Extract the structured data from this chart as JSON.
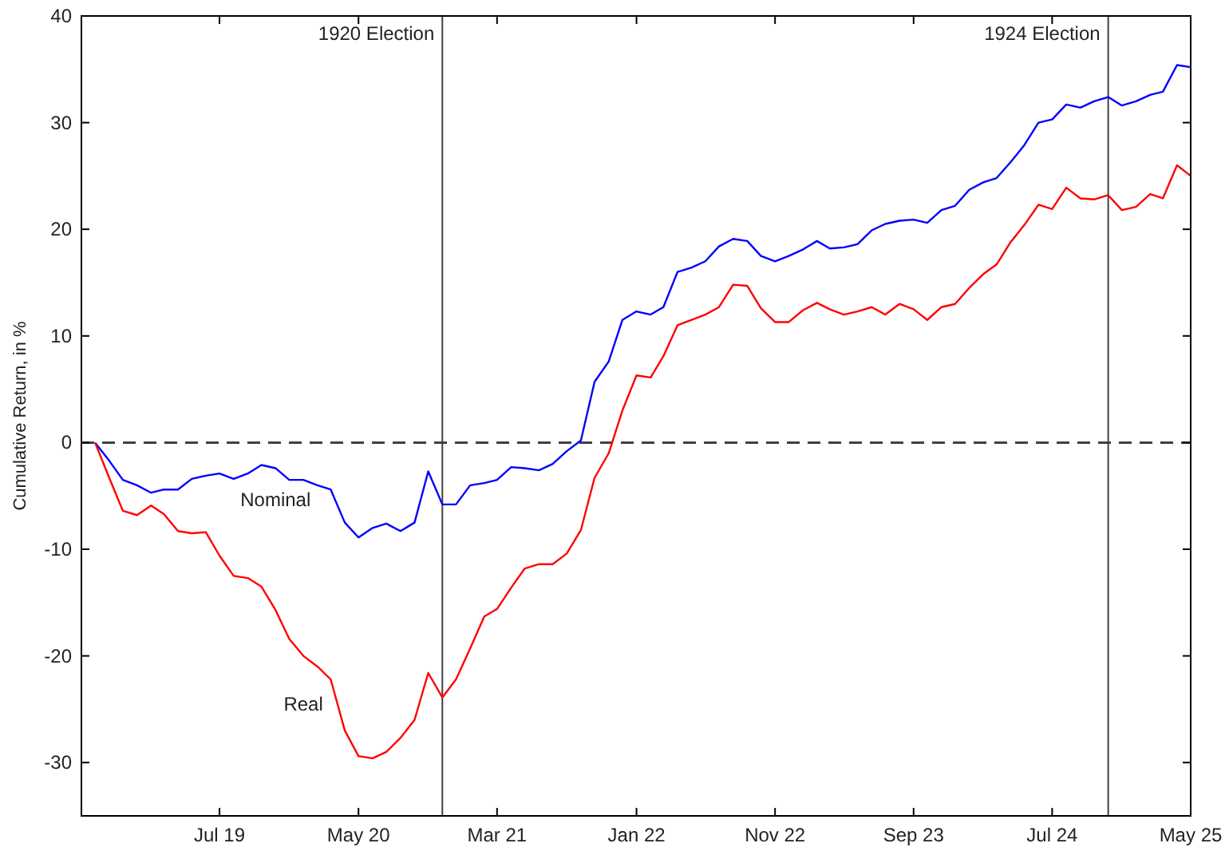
{
  "chart_data": {
    "type": "line",
    "ylabel": "Cumulative Return, in %",
    "x": [
      "1918-10",
      "1918-11",
      "1918-12",
      "1919-01",
      "1919-02",
      "1919-03",
      "1919-04",
      "1919-05",
      "1919-06",
      "1919-07",
      "1919-08",
      "1919-09",
      "1919-10",
      "1919-11",
      "1919-12",
      "1920-01",
      "1920-02",
      "1920-03",
      "1920-04",
      "1920-05",
      "1920-06",
      "1920-07",
      "1920-08",
      "1920-09",
      "1920-10",
      "1920-11",
      "1920-12",
      "1921-01",
      "1921-02",
      "1921-03",
      "1921-04",
      "1921-05",
      "1921-06",
      "1921-07",
      "1921-08",
      "1921-09",
      "1921-10",
      "1921-11",
      "1921-12",
      "1922-01",
      "1922-02",
      "1922-03",
      "1922-04",
      "1922-05",
      "1922-06",
      "1922-07",
      "1922-08",
      "1922-09",
      "1922-10",
      "1922-11",
      "1922-12",
      "1923-01",
      "1923-02",
      "1923-03",
      "1923-04",
      "1923-05",
      "1923-06",
      "1923-07",
      "1923-08",
      "1923-09",
      "1923-10",
      "1923-11",
      "1923-12",
      "1924-01",
      "1924-02",
      "1924-03",
      "1924-04",
      "1924-05",
      "1924-06",
      "1924-07",
      "1924-08",
      "1924-09",
      "1924-10",
      "1924-11",
      "1924-12",
      "1925-01",
      "1925-02",
      "1925-03",
      "1925-04",
      "1925-05"
    ],
    "series": [
      {
        "name": "Nominal",
        "color": "#0000ff",
        "values": [
          0,
          -1.7,
          -3.5,
          -4,
          -4.7,
          -4.4,
          -4.4,
          -3.4,
          -3.1,
          -2.9,
          -3.4,
          -2.9,
          -2.1,
          -2.4,
          -3.5,
          -3.5,
          -4,
          -4.4,
          -7.5,
          -8.9,
          -8,
          -7.6,
          -8.3,
          -7.5,
          -2.7,
          -5.8,
          -5.8,
          -4,
          -3.8,
          -3.5,
          -2.3,
          -2.4,
          -2.6,
          -2,
          -0.8,
          0.2,
          5.7,
          7.6,
          11.5,
          12.3,
          12,
          12.7,
          16,
          16.4,
          17,
          18.4,
          19.1,
          18.9,
          17.5,
          17,
          17.5,
          18.1,
          18.9,
          18.2,
          18.3,
          18.6,
          19.9,
          20.5,
          20.8,
          20.9,
          20.6,
          21.8,
          22.2,
          23.7,
          24.4,
          24.8,
          26.3,
          27.9,
          30,
          30.3,
          31.7,
          31.4,
          32,
          32.4,
          31.6,
          32,
          32.6,
          32.9,
          35.4,
          35.2
        ]
      },
      {
        "name": "Real",
        "color": "#ff0000",
        "values": [
          0,
          -3.3,
          -6.4,
          -6.8,
          -5.9,
          -6.7,
          -8.3,
          -8.5,
          -8.4,
          -10.6,
          -12.5,
          -12.7,
          -13.5,
          -15.7,
          -18.4,
          -20,
          -21,
          -22.2,
          -27,
          -29.4,
          -29.6,
          -29,
          -27.7,
          -26,
          -21.6,
          -23.9,
          -22.2,
          -19.3,
          -16.3,
          -15.6,
          -13.6,
          -11.8,
          -11.4,
          -11.4,
          -10.4,
          -8.2,
          -3.3,
          -1,
          3,
          6.3,
          6.1,
          8.1,
          11,
          11.5,
          12,
          12.7,
          14.8,
          14.7,
          12.6,
          11.3,
          11.3,
          12.4,
          13.1,
          12.5,
          12,
          12.3,
          12.7,
          12,
          13,
          12.5,
          11.5,
          12.7,
          13,
          14.5,
          15.8,
          16.7,
          18.8,
          20.4,
          22.3,
          21.9,
          23.9,
          22.9,
          22.8,
          23.2,
          21.8,
          22.1,
          23.3,
          22.9,
          26,
          25
        ]
      }
    ],
    "xlim": [
      "1918-09",
      "1925-05"
    ],
    "xticks": [
      {
        "value": "1919-07",
        "label": "Jul 19"
      },
      {
        "value": "1920-05",
        "label": "May 20"
      },
      {
        "value": "1921-03",
        "label": "Mar 21"
      },
      {
        "value": "1922-01",
        "label": "Jan 22"
      },
      {
        "value": "1922-11",
        "label": "Nov 22"
      },
      {
        "value": "1923-09",
        "label": "Sep 23"
      },
      {
        "value": "1924-07",
        "label": "Jul 24"
      },
      {
        "value": "1925-05",
        "label": "May 25"
      }
    ],
    "ylim": [
      -35,
      40
    ],
    "yticks": [
      -30,
      -20,
      -10,
      0,
      10,
      20,
      30,
      40
    ],
    "ref_lines": [
      {
        "axis": "y",
        "value": 0,
        "color": "#404040",
        "line_style": "dashed"
      },
      {
        "axis": "x",
        "value": "1920-11",
        "label": "1920 Election",
        "color": "#404040",
        "line_style": "solid"
      },
      {
        "axis": "x",
        "value": "1924-11",
        "label": "1924 Election",
        "color": "#404040",
        "line_style": "solid"
      }
    ],
    "grid": false,
    "legend": false,
    "marker": "none",
    "line_style": "solid"
  }
}
